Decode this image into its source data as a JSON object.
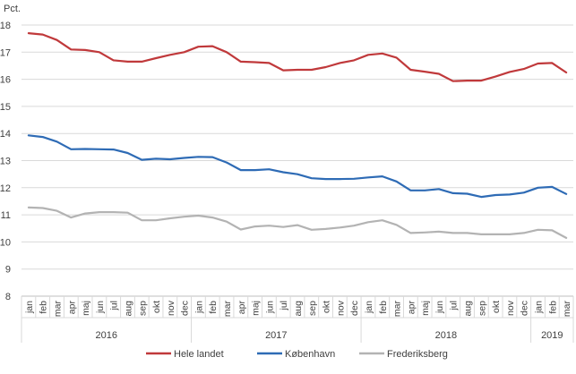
{
  "chart_data": {
    "type": "line",
    "ylabel": "Pct.",
    "ylim": [
      8,
      18
    ],
    "yticks": [
      8,
      9,
      10,
      11,
      12,
      13,
      14,
      15,
      16,
      17,
      18
    ],
    "grid": true,
    "legend": "bottom",
    "months": [
      "jan",
      "feb",
      "mar",
      "apr",
      "maj",
      "jun",
      "jul",
      "aug",
      "sep",
      "okt",
      "nov",
      "dec",
      "jan",
      "feb",
      "mar",
      "apr",
      "maj",
      "jun",
      "jul",
      "aug",
      "sep",
      "okt",
      "nov",
      "dec",
      "jan",
      "feb",
      "mar",
      "apr",
      "maj",
      "jun",
      "jul",
      "aug",
      "sep",
      "okt",
      "nov",
      "dec",
      "jan",
      "feb",
      "mar"
    ],
    "years": [
      {
        "label": "2016",
        "start": 0,
        "end": 11
      },
      {
        "label": "2017",
        "start": 12,
        "end": 23
      },
      {
        "label": "2018",
        "start": 24,
        "end": 35
      },
      {
        "label": "2019",
        "start": 36,
        "end": 38
      }
    ],
    "series": [
      {
        "name": "Hele landet",
        "color": "#c0393b",
        "values": [
          17.7,
          17.65,
          17.45,
          17.1,
          17.08,
          17.0,
          16.7,
          16.65,
          16.65,
          16.78,
          16.9,
          17.0,
          17.2,
          17.22,
          17.0,
          16.65,
          16.63,
          16.6,
          16.33,
          16.35,
          16.35,
          16.45,
          16.6,
          16.7,
          16.9,
          16.95,
          16.8,
          16.35,
          16.28,
          16.2,
          15.93,
          15.95,
          15.95,
          16.1,
          16.27,
          16.38,
          16.58,
          16.6,
          16.25
        ]
      },
      {
        "name": "København",
        "color": "#2e6bb5",
        "values": [
          13.93,
          13.87,
          13.7,
          13.42,
          13.43,
          13.42,
          13.41,
          13.28,
          13.03,
          13.07,
          13.05,
          13.1,
          13.14,
          13.13,
          12.93,
          12.65,
          12.65,
          12.68,
          12.57,
          12.5,
          12.35,
          12.32,
          12.32,
          12.33,
          12.38,
          12.42,
          12.23,
          11.9,
          11.9,
          11.95,
          11.8,
          11.78,
          11.66,
          11.73,
          11.75,
          11.82,
          12.0,
          12.03,
          11.77
        ]
      },
      {
        "name": "Frederiksberg",
        "color": "#b3b3b3",
        "values": [
          11.27,
          11.25,
          11.15,
          10.9,
          11.05,
          11.1,
          11.1,
          11.08,
          10.8,
          10.8,
          10.87,
          10.93,
          10.97,
          10.9,
          10.75,
          10.46,
          10.57,
          10.6,
          10.55,
          10.62,
          10.45,
          10.48,
          10.53,
          10.6,
          10.73,
          10.8,
          10.63,
          10.33,
          10.35,
          10.38,
          10.33,
          10.33,
          10.28,
          10.28,
          10.28,
          10.33,
          10.45,
          10.43,
          10.15
        ]
      }
    ]
  }
}
